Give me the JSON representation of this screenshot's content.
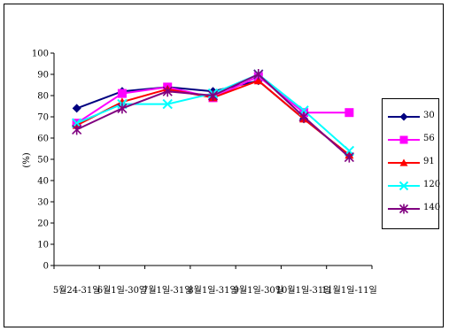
{
  "chart_data": {
    "type": "line",
    "title": "",
    "xlabel": "",
    "ylabel": "(%)",
    "ylim": [
      0,
      100
    ],
    "yticks": [
      "0",
      "10",
      "20",
      "30",
      "40",
      "50",
      "60",
      "70",
      "80",
      "90",
      "100"
    ],
    "categories": [
      "5월24-31일",
      "6월1일-30일",
      "7월1일-31일",
      "8월1일-31일",
      "9월1일-30일",
      "10월1일-31일",
      "11월1일-11일"
    ],
    "grid": false,
    "legend_position": "right",
    "series": [
      {
        "name": "30",
        "color": "#000080",
        "marker": "diamond",
        "values": [
          74,
          82,
          84,
          82,
          87,
          69,
          52
        ]
      },
      {
        "name": "56",
        "color": "#ff00ff",
        "marker": "square",
        "values": [
          67,
          81,
          84,
          79,
          89,
          72,
          72
        ]
      },
      {
        "name": "91",
        "color": "#ff0000",
        "marker": "triangle",
        "values": [
          66,
          77,
          83,
          79,
          87,
          69,
          52
        ]
      },
      {
        "name": "120",
        "color": "#00ffff",
        "marker": "x",
        "values": [
          67,
          76,
          76,
          81,
          90,
          73,
          54
        ]
      },
      {
        "name": "140",
        "color": "#800080",
        "marker": "star",
        "values": [
          64,
          74,
          82,
          80,
          90,
          70,
          51
        ]
      }
    ]
  }
}
